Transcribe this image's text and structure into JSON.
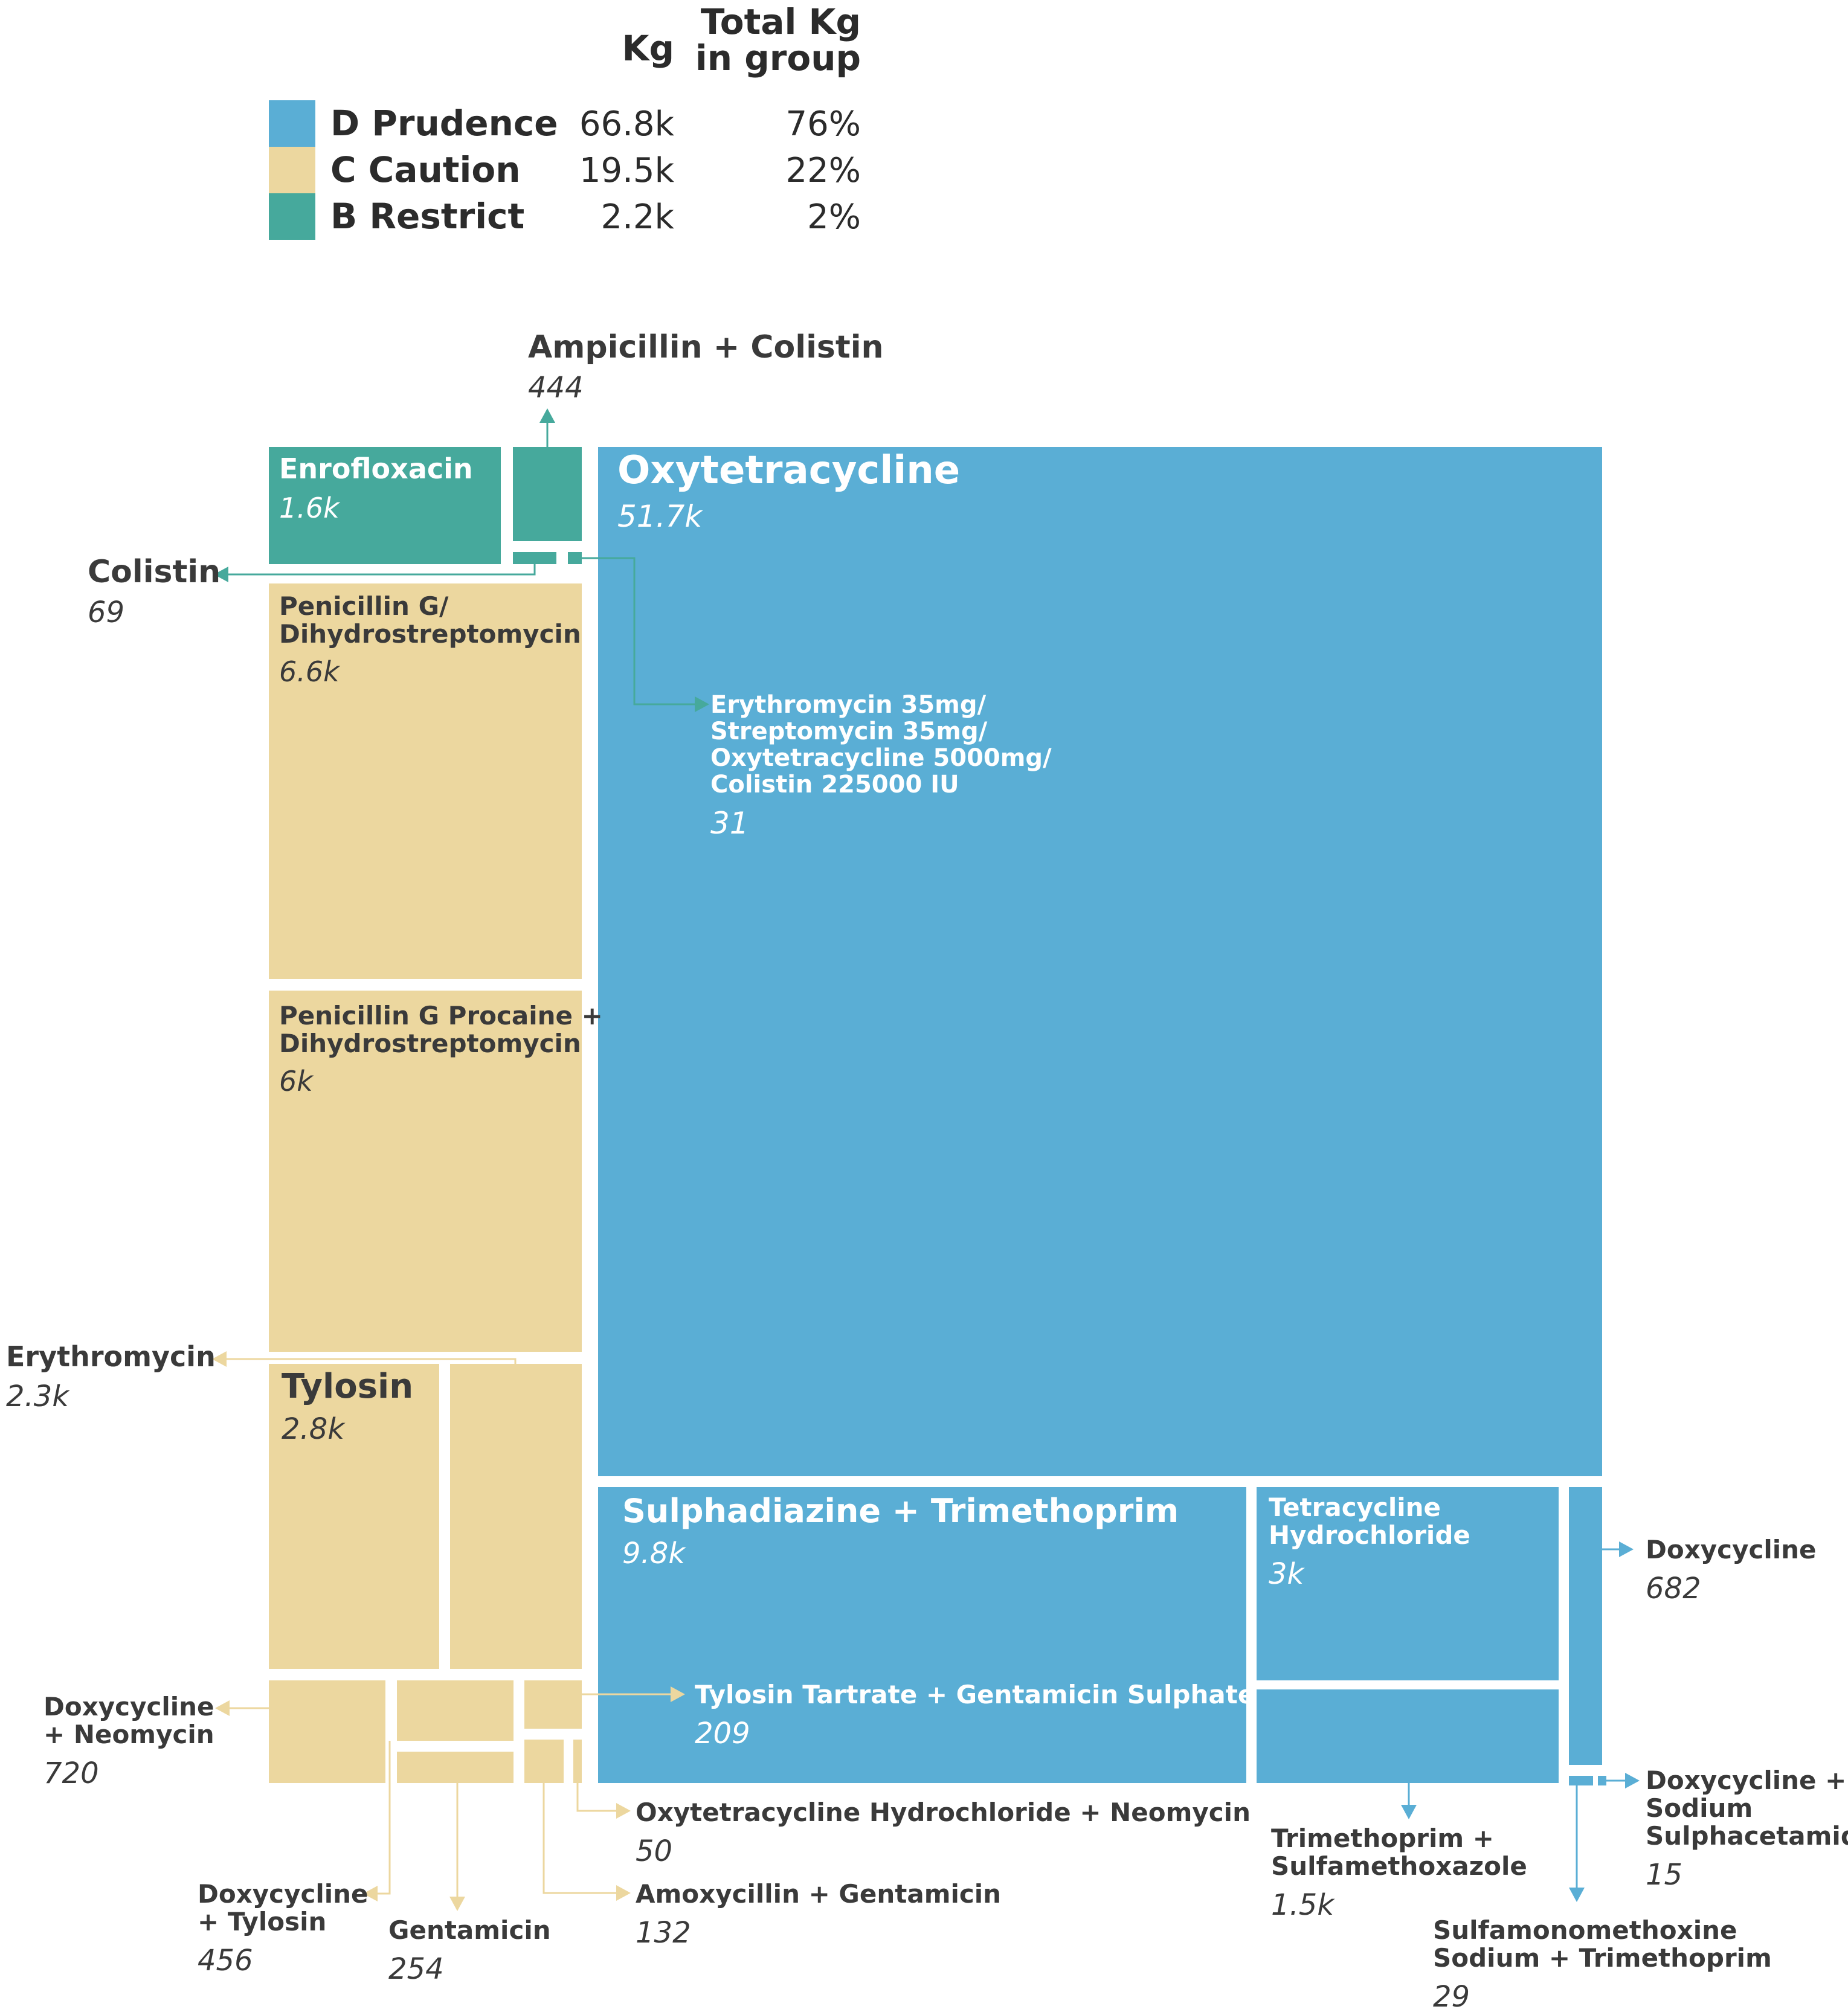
{
  "colors": {
    "D": "#5aaed5",
    "C": "#ecd79f",
    "B": "#46a99c"
  },
  "chart_data": {
    "type": "treemap",
    "legend": {
      "header_kg": "Kg",
      "header_total_line1": "Total Kg",
      "header_total_line2": "in group",
      "rows": [
        {
          "group": "D",
          "label": "D Prudence",
          "kg": "66.8k",
          "pct": "76%"
        },
        {
          "group": "C",
          "label": "C Caution",
          "kg": "19.5k",
          "pct": "22%"
        },
        {
          "group": "B",
          "label": "B Restrict",
          "kg": "2.2k",
          "pct": "2%"
        }
      ]
    },
    "items": [
      {
        "id": "oxytetracycline",
        "group": "D",
        "name": [
          "Oxytetracycline"
        ],
        "value": "51.7k"
      },
      {
        "id": "sulphadiazine-trimethoprim",
        "group": "D",
        "name": [
          "Sulphadiazine + Trimethoprim"
        ],
        "value": "9.8k"
      },
      {
        "id": "tetracycline-hydrochloride",
        "group": "D",
        "name": [
          "Tetracycline",
          "Hydrochloride"
        ],
        "value": "3k"
      },
      {
        "id": "trimethoprim-sulfamethoxazole",
        "group": "D",
        "name": [
          "Trimethoprim +",
          "Sulfamethoxazole"
        ],
        "value": "1.5k"
      },
      {
        "id": "doxycycline",
        "group": "D",
        "name": [
          "Doxycycline"
        ],
        "value": "682"
      },
      {
        "id": "tylosin-tartrate-gentamicin",
        "group": "D",
        "name": [
          "Tylosin Tartrate + Gentamicin Sulphate"
        ],
        "value": "209"
      },
      {
        "id": "erythromycin-combo",
        "group": "D",
        "name": [
          "Erythromycin 35mg/",
          "Streptomycin 35mg/",
          "Oxytetracycline 5000mg/",
          "Colistin 225000 IU"
        ],
        "value": "31"
      },
      {
        "id": "sulfamonomethoxine",
        "group": "D",
        "name": [
          "Sulfamonomethoxine",
          "Sodium + Trimethoprim"
        ],
        "value": "29"
      },
      {
        "id": "doxycycline-sodium-sulphacetamide",
        "group": "D",
        "name": [
          "Doxycycline +",
          "Sodium",
          "Sulphacetamide"
        ],
        "value": "15"
      },
      {
        "id": "penicillin-g-dihydrostreptomycin",
        "group": "C",
        "name": [
          "Penicillin G/",
          "Dihydrostreptomycin"
        ],
        "value": "6.6k"
      },
      {
        "id": "penicillin-g-procaine",
        "group": "C",
        "name": [
          "Penicillin G Procaine +",
          "Dihydrostreptomycin"
        ],
        "value": "6k"
      },
      {
        "id": "tylosin",
        "group": "C",
        "name": [
          "Tylosin"
        ],
        "value": "2.8k"
      },
      {
        "id": "erythromycin",
        "group": "C",
        "name": [
          "Erythromycin"
        ],
        "value": "2.3k"
      },
      {
        "id": "doxycycline-neomycin",
        "group": "C",
        "name": [
          "Doxycycline",
          "+ Neomycin"
        ],
        "value": "720"
      },
      {
        "id": "doxycycline-tylosin",
        "group": "C",
        "name": [
          "Doxycycline",
          "+ Tylosin"
        ],
        "value": "456"
      },
      {
        "id": "gentamicin",
        "group": "C",
        "name": [
          "Gentamicin"
        ],
        "value": "254"
      },
      {
        "id": "amoxycillin-gentamicin",
        "group": "C",
        "name": [
          "Amoxycillin + Gentamicin"
        ],
        "value": "132"
      },
      {
        "id": "oxytetracycline-hcl-neomycin",
        "group": "C",
        "name": [
          "Oxytetracycline Hydrochloride + Neomycin"
        ],
        "value": "50"
      },
      {
        "id": "enrofloxacin",
        "group": "B",
        "name": [
          "Enrofloxacin"
        ],
        "value": "1.6k"
      },
      {
        "id": "ampicillin-colistin",
        "group": "B",
        "name": [
          "Ampicillin + Colistin"
        ],
        "value": "444"
      },
      {
        "id": "colistin",
        "group": "B",
        "name": [
          "Colistin"
        ],
        "value": "69"
      }
    ]
  }
}
